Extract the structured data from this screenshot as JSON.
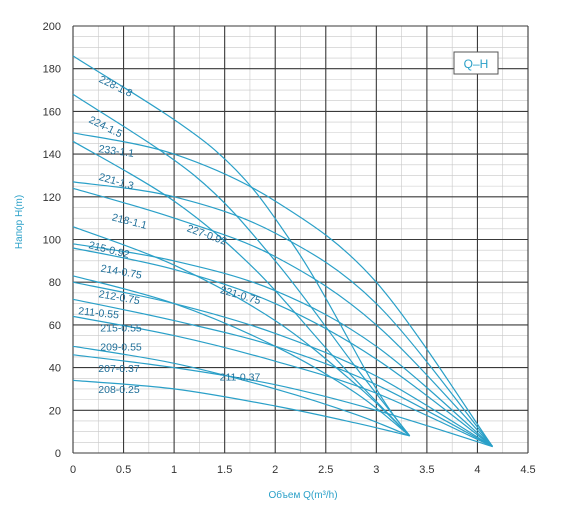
{
  "chart_data": {
    "type": "line",
    "title": "",
    "legend_box": "Q–H",
    "xlabel": "Объем Q(m³/h)",
    "ylabel": "Напор H(m)",
    "xlim": [
      0,
      4.5
    ],
    "ylim": [
      0,
      200
    ],
    "x_ticks": [
      "0",
      "0.5",
      "1",
      "1.5",
      "2",
      "2.5",
      "3",
      "3.5",
      "4",
      "4.5"
    ],
    "y_ticks": [
      "0",
      "20",
      "40",
      "60",
      "80",
      "100",
      "120",
      "140",
      "160",
      "180",
      "200"
    ],
    "grid": true,
    "line_color": "#2aa0c8",
    "series": [
      {
        "name": "228-1.8",
        "x": [
          0,
          1.4,
          2.2,
          3.0,
          3.33
        ],
        "y": [
          186,
          142,
          96,
          30,
          8
        ]
      },
      {
        "name": "224-1.5",
        "x": [
          0,
          1.2,
          2.0,
          2.8,
          3.33
        ],
        "y": [
          168,
          130,
          90,
          40,
          8
        ]
      },
      {
        "name": "233-1.1",
        "x": [
          0,
          1.0,
          2.0,
          3.0,
          4.15
        ],
        "y": [
          150,
          140,
          118,
          80,
          3
        ]
      },
      {
        "name": "221-1.3",
        "x": [
          0,
          1.0,
          1.8,
          2.6,
          3.33
        ],
        "y": [
          146,
          118,
          86,
          44,
          8
        ]
      },
      {
        "name": "218-1.1",
        "x": [
          0,
          1.0,
          2.0,
          3.0,
          4.15
        ],
        "y": [
          127,
          120,
          103,
          70,
          3
        ]
      },
      {
        "name": "227-0.92",
        "x": [
          0,
          1.0,
          2.0,
          3.0,
          4.15
        ],
        "y": [
          124,
          110,
          92,
          60,
          3
        ]
      },
      {
        "name": "215-0.92",
        "x": [
          0,
          1.0,
          2.0,
          2.8,
          3.33
        ],
        "y": [
          106,
          88,
          62,
          32,
          8
        ]
      },
      {
        "name": "214-0.75",
        "x": [
          0,
          1.0,
          2.0,
          3.0,
          4.15
        ],
        "y": [
          98,
          90,
          76,
          50,
          3
        ]
      },
      {
        "name": "221-0.75",
        "x": [
          0,
          1.0,
          2.0,
          3.0,
          4.15
        ],
        "y": [
          96,
          86,
          70,
          44,
          3
        ]
      },
      {
        "name": "212-0.75",
        "x": [
          0,
          1.0,
          2.0,
          2.8,
          3.33
        ],
        "y": [
          83,
          70,
          50,
          28,
          8
        ]
      },
      {
        "name": "211-0.55",
        "x": [
          0,
          1.0,
          2.0,
          3.0,
          4.15
        ],
        "y": [
          80,
          70,
          56,
          36,
          3
        ]
      },
      {
        "name": "215-0.55",
        "x": [
          0,
          1.0,
          2.0,
          3.0,
          4.15
        ],
        "y": [
          72,
          62,
          50,
          32,
          3
        ]
      },
      {
        "name": "209-0.55",
        "x": [
          0,
          1.0,
          2.0,
          3.0,
          4.15
        ],
        "y": [
          64,
          55,
          43,
          28,
          3
        ]
      },
      {
        "name": "207-0.37",
        "x": [
          0,
          1.0,
          2.0,
          2.8,
          3.33
        ],
        "y": [
          50,
          42,
          30,
          18,
          8
        ]
      },
      {
        "name": "211-0.37",
        "x": [
          0,
          1.0,
          2.0,
          3.0,
          4.15
        ],
        "y": [
          46,
          40,
          32,
          20,
          3
        ]
      },
      {
        "name": "208-0.25",
        "x": [
          0,
          1.0,
          2.0,
          2.8,
          3.33
        ],
        "y": [
          34,
          30,
          22,
          14,
          8
        ]
      }
    ],
    "labels": [
      {
        "text": "228-1.8",
        "x": 0.25,
        "y": 174,
        "rotate": 26
      },
      {
        "text": "224-1.5",
        "x": 0.15,
        "y": 155,
        "rotate": 26
      },
      {
        "text": "233-1.1",
        "x": 0.25,
        "y": 141,
        "rotate": 8
      },
      {
        "text": "221-1.3",
        "x": 0.25,
        "y": 128,
        "rotate": 16
      },
      {
        "text": "218-1.1",
        "x": 0.38,
        "y": 109,
        "rotate": 14
      },
      {
        "text": "227-0.92",
        "x": 1.12,
        "y": 104,
        "rotate": 20
      },
      {
        "text": "215-0.92",
        "x": 0.15,
        "y": 96,
        "rotate": 14
      },
      {
        "text": "214-0.75",
        "x": 0.27,
        "y": 85,
        "rotate": 10
      },
      {
        "text": "221-0.75",
        "x": 1.45,
        "y": 75,
        "rotate": 16
      },
      {
        "text": "212-0.75",
        "x": 0.25,
        "y": 73,
        "rotate": 10
      },
      {
        "text": "211-0.55",
        "x": 0.05,
        "y": 65,
        "rotate": 6
      },
      {
        "text": "215-0.55",
        "x": 0.27,
        "y": 57,
        "rotate": 0
      },
      {
        "text": "209-0.55",
        "x": 0.27,
        "y": 48,
        "rotate": 0
      },
      {
        "text": "207-0.37",
        "x": 0.25,
        "y": 38,
        "rotate": 0
      },
      {
        "text": "211-0.37",
        "x": 1.45,
        "y": 34,
        "rotate": 0
      },
      {
        "text": "208-0.25",
        "x": 0.25,
        "y": 28,
        "rotate": 0
      }
    ]
  }
}
